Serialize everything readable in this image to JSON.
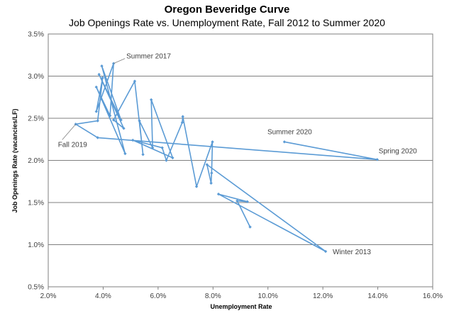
{
  "chart_data": {
    "type": "line",
    "title": "Oregon Beveridge Curve",
    "subtitle": "Job Openings Rate vs. Unemployment Rate, Fall 2012 to Summer 2020",
    "xlabel": "Unemployment Rate",
    "ylabel": "Job Openings Rate (vacancies/LF)",
    "xlim": [
      0.02,
      0.16
    ],
    "ylim": [
      0.005,
      0.035
    ],
    "x_ticks": [
      0.02,
      0.04,
      0.06,
      0.08,
      0.1,
      0.12,
      0.14,
      0.16
    ],
    "x_tick_labels": [
      "2.0%",
      "4.0%",
      "6.0%",
      "8.0%",
      "10.0%",
      "12.0%",
      "14.0%",
      "16.0%"
    ],
    "y_ticks": [
      0.005,
      0.01,
      0.015,
      0.02,
      0.025,
      0.03,
      0.035
    ],
    "y_tick_labels": [
      "0.5%",
      "1.0%",
      "1.5%",
      "2.0%",
      "2.5%",
      "3.0%",
      "3.5%"
    ],
    "grid": "horizontal",
    "legend": "none",
    "series": [
      {
        "color": "#5b9bd5",
        "points": [
          {
            "x": 0.0935,
            "y": 0.0121
          },
          {
            "x": 0.0888,
            "y": 0.0152
          },
          {
            "x": 0.0925,
            "y": 0.0151
          },
          {
            "x": 0.082,
            "y": 0.016
          },
          {
            "x": 0.121,
            "y": 0.0092
          },
          {
            "x": 0.0778,
            "y": 0.0195
          },
          {
            "x": 0.0793,
            "y": 0.0173
          },
          {
            "x": 0.0795,
            "y": 0.0185
          },
          {
            "x": 0.0798,
            "y": 0.0222
          },
          {
            "x": 0.074,
            "y": 0.0169
          },
          {
            "x": 0.069,
            "y": 0.0252
          },
          {
            "x": 0.0688,
            "y": 0.0245
          },
          {
            "x": 0.063,
            "y": 0.02
          },
          {
            "x": 0.0615,
            "y": 0.0215
          },
          {
            "x": 0.0508,
            "y": 0.0224
          },
          {
            "x": 0.0653,
            "y": 0.0203
          },
          {
            "x": 0.0575,
            "y": 0.0272
          },
          {
            "x": 0.058,
            "y": 0.0215
          },
          {
            "x": 0.0532,
            "y": 0.0247
          },
          {
            "x": 0.0545,
            "y": 0.0207
          },
          {
            "x": 0.0515,
            "y": 0.0294
          },
          {
            "x": 0.0438,
            "y": 0.0248
          },
          {
            "x": 0.0475,
            "y": 0.0238
          },
          {
            "x": 0.0385,
            "y": 0.0302
          },
          {
            "x": 0.0465,
            "y": 0.0248
          },
          {
            "x": 0.0395,
            "y": 0.0312
          },
          {
            "x": 0.048,
            "y": 0.0208
          },
          {
            "x": 0.0375,
            "y": 0.0287
          },
          {
            "x": 0.0425,
            "y": 0.0253
          },
          {
            "x": 0.0438,
            "y": 0.0315
          },
          {
            "x": 0.0375,
            "y": 0.0258
          },
          {
            "x": 0.0398,
            "y": 0.0298
          },
          {
            "x": 0.038,
            "y": 0.0247
          },
          {
            "x": 0.03,
            "y": 0.0243
          },
          {
            "x": 0.038,
            "y": 0.0227
          },
          {
            "x": 0.1398,
            "y": 0.0201
          },
          {
            "x": 0.106,
            "y": 0.0222
          }
        ]
      }
    ],
    "annotations": [
      {
        "text": "Summer 2017",
        "x": 0.0438,
        "y": 0.0315
      },
      {
        "text": "Fall 2019",
        "x": 0.03,
        "y": 0.0243
      },
      {
        "text": "Summer 2020",
        "x": 0.106,
        "y": 0.0222
      },
      {
        "text": "Spring 2020",
        "x": 0.1398,
        "y": 0.0201
      },
      {
        "text": "Winter 2013",
        "x": 0.121,
        "y": 0.0092
      }
    ]
  }
}
